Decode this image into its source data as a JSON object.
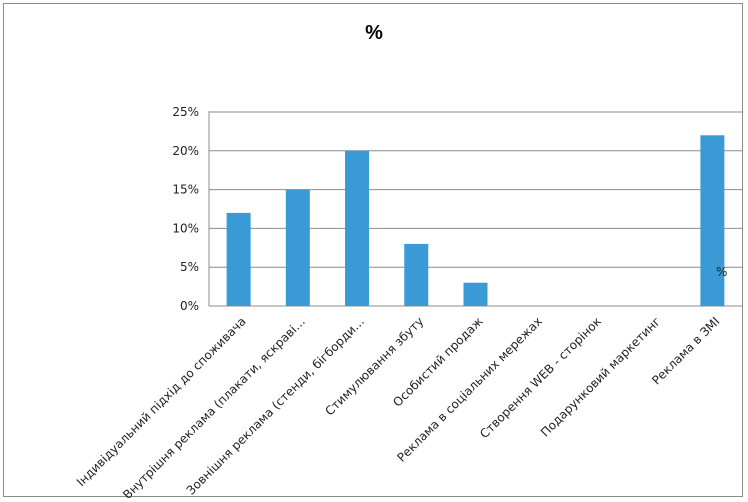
{
  "chart_data": {
    "type": "bar",
    "title": "%",
    "categories": [
      "Індивідуальний підхід до споживача",
      "Внутрішня реклама (плакати, яскраві…",
      "Зовнішня реклама (стенди, бігборди…",
      "Стимулювання збуту",
      "Особистий продаж",
      "Реклама в соціальних мережах",
      "Створення WEB - сторінок",
      "Подарунковий  маркетинг",
      "Реклама в ЗМІ"
    ],
    "series": [
      {
        "name": "%",
        "values": [
          12,
          15,
          20,
          8,
          3,
          0,
          0,
          0,
          22
        ]
      }
    ],
    "ylim": [
      0,
      25
    ],
    "yticks": [
      "0%",
      "5%",
      "10%",
      "15%",
      "20%",
      "25%"
    ],
    "grid": true,
    "legend": "right",
    "bar_color": "#3a9ad6",
    "grid_color": "#8c8c8c"
  }
}
